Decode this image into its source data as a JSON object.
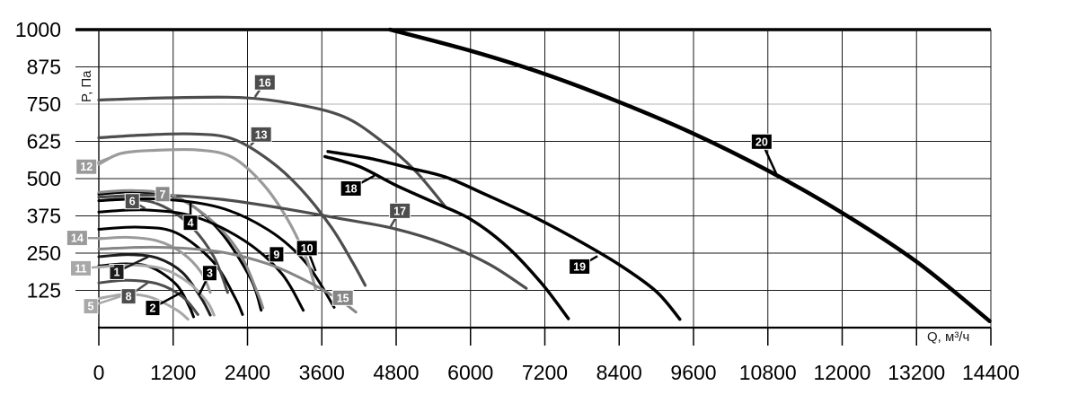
{
  "chart_data": {
    "type": "line",
    "title": "",
    "xlabel": "Q, м³/ч",
    "ylabel": "P, Па",
    "xlim": [
      0,
      14400
    ],
    "ylim": [
      0,
      1000
    ],
    "x_ticks": [
      0,
      1200,
      2400,
      3600,
      4800,
      6000,
      7200,
      8400,
      9600,
      10800,
      12000,
      13200,
      14400
    ],
    "y_ticks": [
      125,
      250,
      375,
      500,
      625,
      750,
      875,
      1000
    ],
    "grid": true,
    "grid_color": "#1a1a1a",
    "light_gridline_y": 750,
    "light_gridline_color": "#b3b3b3",
    "legend_position": "none",
    "series": [
      {
        "name": "1",
        "color": "#1c1c1c",
        "width": 3,
        "label": {
          "q": 290,
          "p": 187
        },
        "anchor": {
          "q": 800,
          "p": 238
        },
        "points": [
          [
            0,
            238
          ],
          [
            500,
            245
          ],
          [
            950,
            233
          ],
          [
            1350,
            185
          ],
          [
            1650,
            100
          ],
          [
            1800,
            42
          ]
        ]
      },
      {
        "name": "2",
        "color": "#000000",
        "width": 3,
        "label": {
          "q": 870,
          "p": 66
        },
        "anchor": {
          "q": 1350,
          "p": 120
        },
        "points": [
          [
            0,
            207
          ],
          [
            450,
            214
          ],
          [
            850,
            202
          ],
          [
            1250,
            145
          ],
          [
            1450,
            75
          ],
          [
            1530,
            36
          ]
        ]
      },
      {
        "name": "3",
        "color": "#000000",
        "width": 3,
        "label": {
          "q": 1790,
          "p": 183
        },
        "anchor": {
          "q": 1620,
          "p": 110
        },
        "points": [
          [
            0,
            330
          ],
          [
            650,
            337
          ],
          [
            1250,
            318
          ],
          [
            1850,
            220
          ],
          [
            2200,
            100
          ],
          [
            2320,
            44
          ]
        ]
      },
      {
        "name": "4",
        "color": "#000000",
        "width": 3,
        "label": {
          "q": 1480,
          "p": 352
        },
        "anchor": {
          "q": 1480,
          "p": 420
        },
        "points": [
          [
            0,
            448
          ],
          [
            650,
            455
          ],
          [
            1350,
            428
          ],
          [
            1950,
            325
          ],
          [
            2450,
            165
          ],
          [
            2620,
            58
          ]
        ]
      },
      {
        "name": "5",
        "color": "#a8a8a8",
        "width": 3,
        "label": {
          "q": -130,
          "p": 72
        },
        "anchor": {
          "q": 350,
          "p": 105
        },
        "points": [
          [
            0,
            98
          ],
          [
            450,
            112
          ],
          [
            850,
            101
          ],
          [
            1250,
            60
          ],
          [
            1440,
            28
          ]
        ]
      },
      {
        "name": "6",
        "color": "#4d4d4d",
        "width": 3,
        "label": {
          "q": 540,
          "p": 424
        },
        "anchor": {
          "q": 750,
          "p": 400
        },
        "points": [
          [
            0,
            426
          ],
          [
            450,
            431
          ],
          [
            950,
            415
          ],
          [
            1450,
            348
          ],
          [
            1850,
            240
          ],
          [
            2080,
            118
          ]
        ]
      },
      {
        "name": "7",
        "color": "#8a8a8a",
        "width": 3,
        "label": {
          "q": 1030,
          "p": 448
        },
        "anchor": {
          "q": 1250,
          "p": 442
        },
        "points": [
          [
            0,
            454
          ],
          [
            550,
            460
          ],
          [
            1150,
            445
          ],
          [
            1750,
            372
          ],
          [
            2250,
            258
          ],
          [
            2560,
            118
          ],
          [
            2650,
            66
          ]
        ]
      },
      {
        "name": "8",
        "color": "#4d4d4d",
        "width": 3,
        "label": {
          "q": 480,
          "p": 105
        },
        "anchor": {
          "q": 800,
          "p": 152
        },
        "points": [
          [
            0,
            150
          ],
          [
            450,
            159
          ],
          [
            950,
            147
          ],
          [
            1350,
            104
          ],
          [
            1600,
            44
          ]
        ]
      },
      {
        "name": "9",
        "color": "#000000",
        "width": 3,
        "label": {
          "q": 2870,
          "p": 246
        },
        "anchor": {
          "q": 2700,
          "p": 240
        },
        "points": [
          [
            0,
            388
          ],
          [
            750,
            395
          ],
          [
            1550,
            372
          ],
          [
            2350,
            292
          ],
          [
            2950,
            182
          ],
          [
            3300,
            58
          ]
        ]
      },
      {
        "name": "10",
        "color": "#000000",
        "width": 3,
        "label": {
          "q": 3360,
          "p": 267
        },
        "anchor": {
          "q": 3500,
          "p": 190
        },
        "points": [
          [
            0,
            426
          ],
          [
            950,
            432
          ],
          [
            1950,
            403
          ],
          [
            2750,
            326
          ],
          [
            3350,
            216
          ],
          [
            3800,
            68
          ]
        ]
      },
      {
        "name": "11",
        "color": "#a8a8a8",
        "width": 3,
        "label": {
          "q": -290,
          "p": 199
        },
        "anchor": {
          "q": 250,
          "p": 207
        },
        "points": [
          [
            0,
            203
          ],
          [
            550,
            210
          ],
          [
            1050,
            196
          ],
          [
            1450,
            151
          ],
          [
            1750,
            86
          ],
          [
            1860,
            42
          ]
        ]
      },
      {
        "name": "12",
        "color": "#9b9b9b",
        "width": 3.2,
        "label": {
          "q": -200,
          "p": 540
        },
        "anchor": {
          "q": 300,
          "p": 580
        },
        "points": [
          [
            0,
            548
          ],
          [
            350,
            584
          ],
          [
            900,
            595
          ],
          [
            1600,
            596
          ],
          [
            2150,
            572
          ],
          [
            2650,
            482
          ],
          [
            3050,
            362
          ],
          [
            3350,
            232
          ],
          [
            3500,
            128
          ]
        ]
      },
      {
        "name": "13",
        "color": "#4d4d4d",
        "width": 3.2,
        "label": {
          "q": 2620,
          "p": 648
        },
        "anchor": {
          "q": 2450,
          "p": 612
        },
        "points": [
          [
            0,
            637
          ],
          [
            700,
            646
          ],
          [
            1500,
            650
          ],
          [
            2150,
            634
          ],
          [
            2750,
            562
          ],
          [
            3250,
            468
          ],
          [
            3750,
            338
          ],
          [
            4100,
            218
          ],
          [
            4300,
            142
          ]
        ]
      },
      {
        "name": "14",
        "color": "#9b9b9b",
        "width": 3,
        "label": {
          "q": -350,
          "p": 301
        },
        "anchor": {
          "q": 200,
          "p": 300
        },
        "points": [
          [
            0,
            298
          ],
          [
            450,
            303
          ],
          [
            950,
            291
          ],
          [
            1350,
            250
          ],
          [
            1650,
            186
          ],
          [
            1800,
            118
          ]
        ]
      },
      {
        "name": "15",
        "color": "#858585",
        "width": 3,
        "label": {
          "q": 3940,
          "p": 100
        },
        "anchor": {
          "q": 3700,
          "p": 112
        },
        "points": [
          [
            0,
            264
          ],
          [
            900,
            270
          ],
          [
            1900,
            256
          ],
          [
            2700,
            216
          ],
          [
            3300,
            162
          ],
          [
            3850,
            98
          ],
          [
            4150,
            52
          ]
        ]
      },
      {
        "name": "16",
        "color": "#4d4d4d",
        "width": 3.2,
        "label": {
          "q": 2680,
          "p": 823
        },
        "anchor": {
          "q": 2520,
          "p": 774
        },
        "points": [
          [
            0,
            764
          ],
          [
            1100,
            771
          ],
          [
            2300,
            772
          ],
          [
            3150,
            751
          ],
          [
            3950,
            708
          ],
          [
            4550,
            628
          ],
          [
            5100,
            528
          ],
          [
            5600,
            404
          ]
        ]
      },
      {
        "name": "17",
        "color": "#4d4d4d",
        "width": 3.2,
        "label": {
          "q": 4860,
          "p": 392
        },
        "anchor": {
          "q": 4700,
          "p": 335
        },
        "points": [
          [
            0,
            438
          ],
          [
            950,
            445
          ],
          [
            1950,
            431
          ],
          [
            2950,
            401
          ],
          [
            3950,
            364
          ],
          [
            4750,
            333
          ],
          [
            5550,
            283
          ],
          [
            6300,
            213
          ],
          [
            6900,
            132
          ]
        ]
      },
      {
        "name": "18",
        "color": "#000000",
        "width": 3.5,
        "label": {
          "q": 4070,
          "p": 467
        },
        "anchor": {
          "q": 4450,
          "p": 510
        },
        "points": [
          [
            3650,
            574
          ],
          [
            4200,
            541
          ],
          [
            4800,
            477
          ],
          [
            5400,
            421
          ],
          [
            6000,
            364
          ],
          [
            6600,
            270
          ],
          [
            7150,
            148
          ],
          [
            7580,
            30
          ]
        ]
      },
      {
        "name": "19",
        "color": "#000000",
        "width": 3.5,
        "label": {
          "q": 7760,
          "p": 205
        },
        "anchor": {
          "q": 8050,
          "p": 240
        },
        "points": [
          [
            3700,
            591
          ],
          [
            4400,
            567
          ],
          [
            5000,
            536
          ],
          [
            5600,
            505
          ],
          [
            6250,
            446
          ],
          [
            7000,
            374
          ],
          [
            7700,
            297
          ],
          [
            8400,
            211
          ],
          [
            9000,
            121
          ],
          [
            9380,
            28
          ]
        ]
      },
      {
        "name": "20",
        "color": "#000000",
        "width": 4.5,
        "label": {
          "q": 10700,
          "p": 624
        },
        "anchor": {
          "q": 10950,
          "p": 510
        },
        "points": [
          [
            4700,
            1000
          ],
          [
            6000,
            929
          ],
          [
            7200,
            851
          ],
          [
            8400,
            757
          ],
          [
            9600,
            651
          ],
          [
            10800,
            527
          ],
          [
            12000,
            385
          ],
          [
            13200,
            221
          ],
          [
            14380,
            22
          ]
        ]
      }
    ]
  },
  "figure": {
    "background": "#ffffff",
    "tick_label_color": "#000000",
    "label_box_text_color": "#ffffff"
  }
}
